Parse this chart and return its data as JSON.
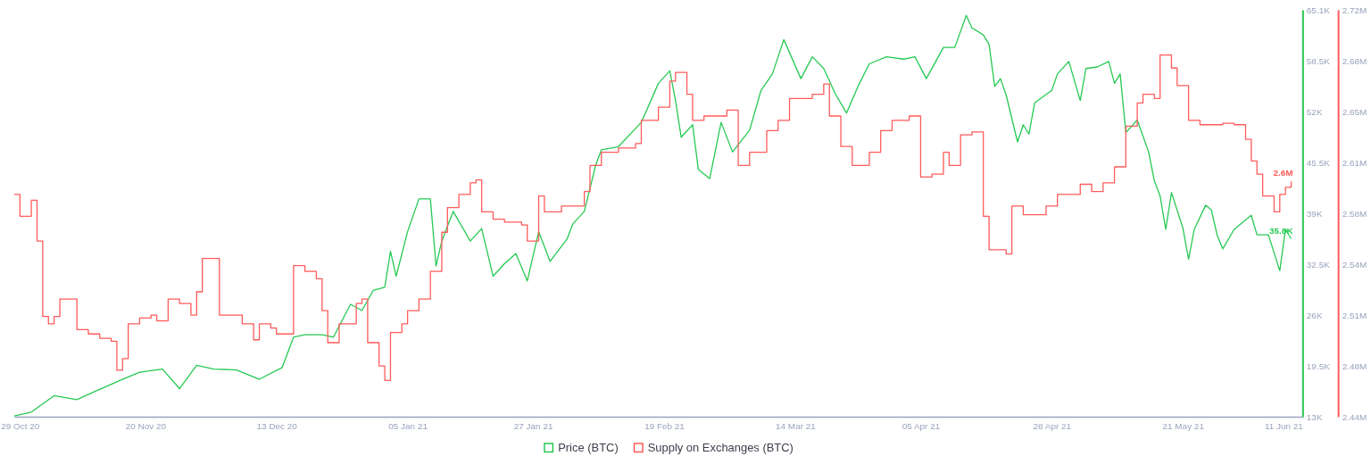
{
  "chart_data": {
    "type": "line",
    "legend": "bottom",
    "grid": false,
    "marker": "none",
    "line_style": "solid",
    "xlim": [
      "2020-10-28",
      "2021-06-11"
    ],
    "xticks": [
      {
        "value": "2020-10-29",
        "label": "29 Oct 20"
      },
      {
        "value": "2020-11-20",
        "label": "20 Nov 20"
      },
      {
        "value": "2020-12-13",
        "label": "13 Dec 20"
      },
      {
        "value": "2021-01-05",
        "label": "05 Jan 21"
      },
      {
        "value": "2021-01-27",
        "label": "27 Jan 21"
      },
      {
        "value": "2021-02-19",
        "label": "19 Feb 21"
      },
      {
        "value": "2021-03-14",
        "label": "14 Mar 21"
      },
      {
        "value": "2021-04-05",
        "label": "05 Apr 21"
      },
      {
        "value": "2021-04-28",
        "label": "28 Apr 21"
      },
      {
        "value": "2021-05-21",
        "label": "21 May 21"
      },
      {
        "value": "2021-06-11",
        "label": "11 Jun 21"
      }
    ],
    "ylim": [
      13000,
      65100
    ],
    "yticks": [
      {
        "value": 13000,
        "label": "13K"
      },
      {
        "value": 19500,
        "label": "19.5K"
      },
      {
        "value": 26025,
        "label": "26K"
      },
      {
        "value": 32500,
        "label": "32.5K"
      },
      {
        "value": 39050,
        "label": "39K"
      },
      {
        "value": 45500,
        "label": "45.5K"
      },
      {
        "value": 52075,
        "label": "52K"
      },
      {
        "value": 58500,
        "label": "58.5K"
      },
      {
        "value": 65100,
        "label": "65.1K"
      }
    ],
    "y2lim": [
      2440000,
      2720000
    ],
    "y2ticks": [
      {
        "value": 2440000,
        "label": "2.44M"
      },
      {
        "value": 2475000,
        "label": "2.48M"
      },
      {
        "value": 2510000,
        "label": "2.51M"
      },
      {
        "value": 2545000,
        "label": "2.54M"
      },
      {
        "value": 2580000,
        "label": "2.58M"
      },
      {
        "value": 2615000,
        "label": "2.61M"
      },
      {
        "value": 2650000,
        "label": "2.65M"
      },
      {
        "value": 2685000,
        "label": "2.68M"
      },
      {
        "value": 2720000,
        "label": "2.72M"
      }
    ],
    "series": [
      {
        "name": "Price (BTC)",
        "type": "line",
        "color": "#26c953",
        "value_labels": [
          null,
          null,
          null,
          null,
          null,
          null,
          null,
          null,
          null,
          null,
          null,
          null,
          null,
          null,
          null,
          null,
          null,
          null,
          null,
          null,
          null,
          null,
          null,
          null,
          null,
          null,
          null,
          null,
          null,
          null,
          null,
          null,
          null,
          null,
          null,
          null,
          null,
          null,
          null,
          null,
          null,
          null,
          null,
          null,
          null,
          null,
          null,
          null,
          null,
          null,
          null,
          null,
          null,
          null,
          null,
          null,
          null,
          null,
          null,
          null,
          null,
          null,
          null,
          null,
          null,
          null,
          null,
          null,
          null,
          null,
          null,
          null,
          null,
          null,
          null,
          null,
          null,
          null,
          null,
          null,
          null,
          null,
          null,
          null,
          null,
          null,
          null,
          null,
          null,
          null,
          null,
          null,
          null,
          null,
          null,
          null,
          null,
          null,
          null,
          null,
          null,
          null,
          null,
          null,
          null,
          null,
          null,
          null,
          null,
          null,
          null,
          "35.8K"
        ],
        "x": [
          "2020-10-28",
          "2020-10-31",
          "2020-11-04",
          "2020-11-08",
          "2020-11-11",
          "2020-11-16",
          "2020-11-19",
          "2020-11-23",
          "2020-11-26",
          "2020-11-29",
          "2020-12-02",
          "2020-12-06",
          "2020-12-10",
          "2020-12-14",
          "2020-12-16",
          "2020-12-18",
          "2020-12-21",
          "2020-12-23",
          "2020-12-26",
          "2020-12-28",
          "2020-12-30",
          "2021-01-01",
          "2021-01-02",
          "2021-01-03",
          "2021-01-05",
          "2021-01-07",
          "2021-01-09",
          "2021-01-10",
          "2021-01-11",
          "2021-01-13",
          "2021-01-16",
          "2021-01-18",
          "2021-01-20",
          "2021-01-22",
          "2021-01-24",
          "2021-01-26",
          "2021-01-28",
          "2021-01-30",
          "2021-02-02",
          "2021-02-03",
          "2021-02-05",
          "2021-02-07",
          "2021-02-08",
          "2021-02-11",
          "2021-02-15",
          "2021-02-18",
          "2021-02-20",
          "2021-02-21",
          "2021-02-22",
          "2021-02-24",
          "2021-02-25",
          "2021-02-27",
          "2021-03-01",
          "2021-03-03",
          "2021-03-06",
          "2021-03-08",
          "2021-03-10",
          "2021-03-12",
          "2021-03-15",
          "2021-03-17",
          "2021-03-19",
          "2021-03-21",
          "2021-03-23",
          "2021-03-25",
          "2021-03-27",
          "2021-03-30",
          "2021-04-02",
          "2021-04-04",
          "2021-04-06",
          "2021-04-09",
          "2021-04-11",
          "2021-04-13",
          "2021-04-14",
          "2021-04-16",
          "2021-04-17",
          "2021-04-18",
          "2021-04-19",
          "2021-04-20",
          "2021-04-22",
          "2021-04-23",
          "2021-04-24",
          "2021-04-25",
          "2021-04-28",
          "2021-04-29",
          "2021-05-01",
          "2021-05-03",
          "2021-05-04",
          "2021-05-06",
          "2021-05-08",
          "2021-05-09",
          "2021-05-10",
          "2021-05-11",
          "2021-05-13",
          "2021-05-15",
          "2021-05-16",
          "2021-05-17",
          "2021-05-18",
          "2021-05-19",
          "2021-05-21",
          "2021-05-22",
          "2021-05-23",
          "2021-05-25",
          "2021-05-26",
          "2021-05-27",
          "2021-05-28",
          "2021-05-30",
          "2021-06-02",
          "2021-06-03",
          "2021-06-05",
          "2021-06-07",
          "2021-06-08",
          "2021-06-09"
        ],
        "values": [
          13100,
          13600,
          15700,
          15200,
          16200,
          17800,
          18700,
          19100,
          16600,
          19600,
          19100,
          19000,
          17800,
          19300,
          23200,
          23500,
          23500,
          23200,
          27400,
          26600,
          29200,
          29600,
          34200,
          31000,
          36700,
          40900,
          40900,
          32300,
          35500,
          39300,
          35500,
          37100,
          31000,
          32600,
          33900,
          30400,
          36700,
          32900,
          35800,
          37700,
          39300,
          45200,
          47200,
          47600,
          50700,
          55700,
          57300,
          53500,
          48800,
          50400,
          44700,
          43500,
          50700,
          46900,
          49700,
          54800,
          56900,
          61300,
          56300,
          59100,
          57600,
          54400,
          51900,
          55300,
          58200,
          59100,
          58800,
          59100,
          56300,
          60300,
          60300,
          64400,
          62800,
          61900,
          60700,
          55300,
          56300,
          54200,
          48200,
          50400,
          49200,
          53200,
          54800,
          56900,
          58500,
          53500,
          57600,
          57800,
          58500,
          55700,
          56900,
          49400,
          51000,
          46900,
          43200,
          41300,
          37000,
          41700,
          37200,
          33200,
          37000,
          40100,
          39500,
          36300,
          34500,
          37000,
          38800,
          36300,
          36300,
          31700,
          37000,
          35800
        ]
      },
      {
        "name": "Supply on Exchanges (BTC)",
        "type": "step",
        "axis": "y2",
        "color": "#ff5b5b",
        "value_labels": [
          null,
          null,
          null,
          null,
          null,
          null,
          null,
          null,
          null,
          null,
          null,
          null,
          null,
          null,
          null,
          null,
          null,
          null,
          null,
          null,
          null,
          null,
          null,
          null,
          null,
          null,
          null,
          null,
          null,
          null,
          null,
          null,
          null,
          null,
          null,
          null,
          null,
          null,
          null,
          null,
          null,
          null,
          null,
          null,
          null,
          null,
          null,
          null,
          null,
          null,
          null,
          null,
          null,
          null,
          null,
          null,
          null,
          null,
          null,
          null,
          null,
          null,
          null,
          null,
          null,
          null,
          null,
          null,
          null,
          null,
          null,
          null,
          null,
          null,
          null,
          null,
          null,
          null,
          null,
          null,
          null,
          null,
          null,
          null,
          null,
          null,
          null,
          null,
          null,
          null,
          null,
          null,
          null,
          null,
          null,
          null,
          null,
          null,
          null,
          null,
          null,
          null,
          null,
          null,
          null,
          null,
          null,
          null,
          null,
          null,
          null,
          null,
          null,
          null,
          null,
          null,
          null,
          null,
          null,
          null,
          "2.6M"
        ],
        "x": [
          "2020-10-28",
          "2020-10-29",
          "2020-10-31",
          "2020-11-01",
          "2020-11-02",
          "2020-11-03",
          "2020-11-04",
          "2020-11-05",
          "2020-11-08",
          "2020-11-10",
          "2020-11-12",
          "2020-11-14",
          "2020-11-15",
          "2020-11-16",
          "2020-11-17",
          "2020-11-19",
          "2020-11-21",
          "2020-11-22",
          "2020-11-24",
          "2020-11-26",
          "2020-11-28",
          "2020-11-29",
          "2020-11-30",
          "2020-12-03",
          "2020-12-07",
          "2020-12-09",
          "2020-12-10",
          "2020-12-12",
          "2020-12-13",
          "2020-12-16",
          "2020-12-18",
          "2020-12-20",
          "2020-12-21",
          "2020-12-22",
          "2020-12-24",
          "2020-12-27",
          "2020-12-28",
          "2020-12-29",
          "2020-12-31",
          "2021-01-01",
          "2021-01-02",
          "2021-01-04",
          "2021-01-05",
          "2021-01-07",
          "2021-01-09",
          "2021-01-11",
          "2021-01-12",
          "2021-01-14",
          "2021-01-16",
          "2021-01-17",
          "2021-01-18",
          "2021-01-20",
          "2021-01-22",
          "2021-01-25",
          "2021-01-26",
          "2021-01-28",
          "2021-01-29",
          "2021-02-01",
          "2021-02-05",
          "2021-02-06",
          "2021-02-08",
          "2021-02-11",
          "2021-02-14",
          "2021-02-15",
          "2021-02-18",
          "2021-02-20",
          "2021-02-21",
          "2021-02-23",
          "2021-02-24",
          "2021-02-26",
          "2021-03-02",
          "2021-03-04",
          "2021-03-06",
          "2021-03-09",
          "2021-03-11",
          "2021-03-13",
          "2021-03-17",
          "2021-03-19",
          "2021-03-20",
          "2021-03-22",
          "2021-03-24",
          "2021-03-27",
          "2021-03-29",
          "2021-03-31",
          "2021-04-03",
          "2021-04-05",
          "2021-04-07",
          "2021-04-09",
          "2021-04-10",
          "2021-04-12",
          "2021-04-14",
          "2021-04-16",
          "2021-04-17",
          "2021-04-20",
          "2021-04-21",
          "2021-04-23",
          "2021-04-27",
          "2021-04-29",
          "2021-05-03",
          "2021-05-05",
          "2021-05-07",
          "2021-05-09",
          "2021-05-11",
          "2021-05-13",
          "2021-05-14",
          "2021-05-16",
          "2021-05-17",
          "2021-05-19",
          "2021-05-20",
          "2021-05-22",
          "2021-05-24",
          "2021-05-28",
          "2021-05-30",
          "2021-06-01",
          "2021-06-02",
          "2021-06-03",
          "2021-06-04",
          "2021-06-06",
          "2021-06-07",
          "2021-06-08",
          "2021-06-09"
        ],
        "values": [
          2593000,
          2578000,
          2589000,
          2561000,
          2509000,
          2504000,
          2509000,
          2521000,
          2500000,
          2497000,
          2494000,
          2492000,
          2472000,
          2480000,
          2504000,
          2508000,
          2510000,
          2506000,
          2521000,
          2518000,
          2510000,
          2526000,
          2549000,
          2510000,
          2504000,
          2493000,
          2504000,
          2501000,
          2497000,
          2544000,
          2540000,
          2535000,
          2513000,
          2491000,
          2504000,
          2518000,
          2521000,
          2491000,
          2475000,
          2465000,
          2498000,
          2504000,
          2513000,
          2521000,
          2540000,
          2567000,
          2584000,
          2593000,
          2601000,
          2603000,
          2581000,
          2576000,
          2574000,
          2572000,
          2561000,
          2592000,
          2581000,
          2585000,
          2595000,
          2613000,
          2622000,
          2625000,
          2628000,
          2644000,
          2653000,
          2671000,
          2677000,
          2662000,
          2644000,
          2647000,
          2651000,
          2613000,
          2622000,
          2637000,
          2644000,
          2659000,
          2662000,
          2669000,
          2647000,
          2626000,
          2613000,
          2622000,
          2637000,
          2644000,
          2647000,
          2605000,
          2607000,
          2622000,
          2613000,
          2634000,
          2636000,
          2578000,
          2555000,
          2552000,
          2585000,
          2579000,
          2585000,
          2593000,
          2600000,
          2595000,
          2601000,
          2612000,
          2640000,
          2656000,
          2662000,
          2659000,
          2689000,
          2680000,
          2668000,
          2644000,
          2641000,
          2642000,
          2641000,
          2631000,
          2616000,
          2607000,
          2592000,
          2581000,
          2593000,
          2598000,
          2602000
        ]
      }
    ]
  }
}
